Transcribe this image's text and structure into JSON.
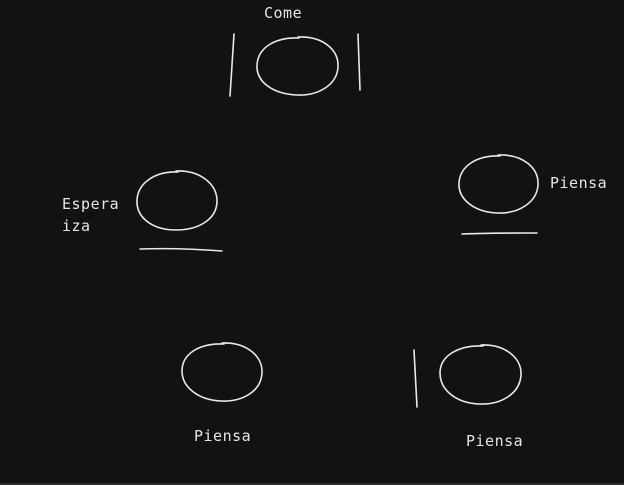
{
  "diagram": {
    "background": "#121212",
    "stroke_color": "#e9e9e9",
    "text_color": "#e6e6e6",
    "philosophers": [
      {
        "id": "top",
        "label": "Come",
        "state": "eating",
        "marks": [
          "left-vertical-line",
          "right-vertical-line"
        ]
      },
      {
        "id": "left",
        "label_line1": "Espera",
        "label_line2": "iza",
        "state": "waiting",
        "marks": [
          "bottom-horizontal-line"
        ]
      },
      {
        "id": "right",
        "label": "Piensa",
        "state": "thinking",
        "marks": [
          "bottom-horizontal-line"
        ]
      },
      {
        "id": "bottom-left",
        "label": "Piensa",
        "state": "thinking",
        "marks": []
      },
      {
        "id": "bottom-right",
        "label": "Piensa",
        "state": "thinking",
        "marks": [
          "left-vertical-line"
        ]
      }
    ]
  }
}
